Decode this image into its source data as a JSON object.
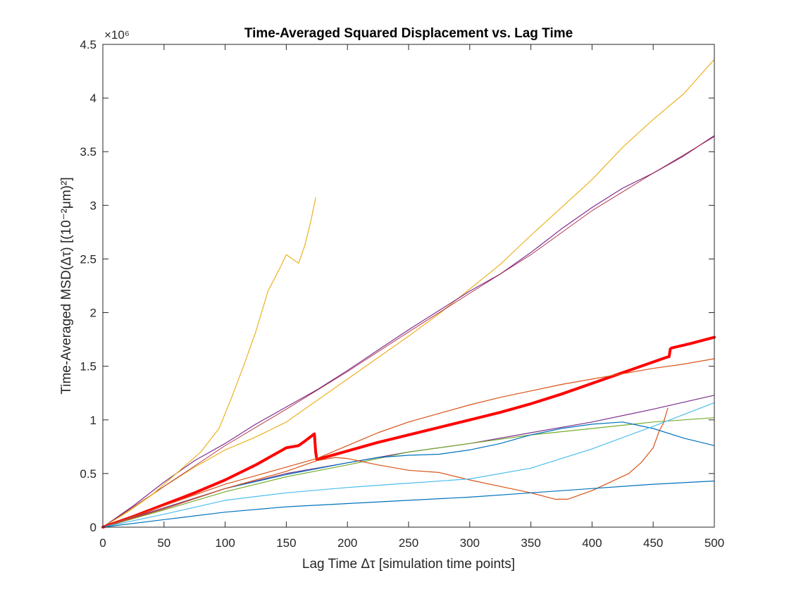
{
  "chart_data": {
    "type": "line",
    "title": "Time-Averaged Squared Displacement vs. Lag Time",
    "xlabel": "Lag Time Δτ [simulation time points]",
    "ylabel": "Time-Averaged MSD(Δτ) [(10⁻²μm)²]",
    "y_multiplier": "×10⁶",
    "xlim": [
      0,
      500
    ],
    "ylim": [
      0,
      4.5
    ],
    "y_scale_factor": 1000000,
    "grid": false,
    "legend": "none",
    "x_ticks": [
      "0",
      "50",
      "100",
      "150",
      "200",
      "250",
      "300",
      "350",
      "400",
      "450",
      "500"
    ],
    "y_ticks": [
      "0",
      "0.5",
      "1",
      "1.5",
      "2",
      "2.5",
      "3",
      "3.5",
      "4",
      "4.5"
    ],
    "series": [
      {
        "color": "#EDB120",
        "width": 1.2,
        "x": [
          0,
          25,
          50,
          75,
          100,
          125,
          150,
          175,
          200,
          225,
          250,
          275,
          300,
          325,
          350,
          375,
          400,
          425,
          450,
          475,
          500
        ],
        "y": [
          0,
          0.18,
          0.38,
          0.56,
          0.72,
          0.84,
          0.98,
          1.18,
          1.38,
          1.58,
          1.78,
          1.99,
          2.22,
          2.45,
          2.72,
          2.98,
          3.24,
          3.54,
          3.8,
          4.04,
          4.36
        ]
      },
      {
        "color": "#7E2F8E",
        "width": 1.2,
        "x": [
          0,
          25,
          50,
          75,
          100,
          125,
          150,
          175,
          200,
          225,
          250,
          275,
          300,
          325,
          350,
          375,
          400,
          425,
          450,
          475,
          500
        ],
        "y": [
          0,
          0.2,
          0.42,
          0.62,
          0.78,
          0.96,
          1.12,
          1.28,
          1.46,
          1.65,
          1.84,
          2.02,
          2.2,
          2.36,
          2.56,
          2.78,
          2.98,
          3.16,
          3.3,
          3.46,
          3.65
        ]
      },
      {
        "color": "#A2142F",
        "width": 0.8,
        "x": [
          0,
          50,
          100,
          150,
          200,
          250,
          300,
          350,
          400,
          450,
          500
        ],
        "y": [
          0,
          0.38,
          0.76,
          1.1,
          1.45,
          1.82,
          2.18,
          2.54,
          2.95,
          3.3,
          3.64
        ]
      },
      {
        "color": "#EDB120",
        "width": 1.2,
        "x": [
          0,
          20,
          40,
          60,
          80,
          95,
          105,
          115,
          125,
          135,
          145,
          150,
          155,
          160,
          165,
          170,
          174
        ],
        "y": [
          0,
          0.14,
          0.3,
          0.5,
          0.7,
          0.92,
          1.2,
          1.5,
          1.82,
          2.2,
          2.42,
          2.54,
          2.5,
          2.46,
          2.62,
          2.85,
          3.07
        ]
      },
      {
        "color": "#FF0000",
        "width": 4,
        "x": [
          0,
          25,
          50,
          75,
          100,
          125,
          150,
          160,
          165,
          173,
          174,
          175,
          200,
          225,
          250,
          275,
          300,
          325,
          350,
          375,
          400,
          425,
          450,
          460,
          463,
          464,
          465,
          480,
          500
        ],
        "y": [
          0,
          0.1,
          0.21,
          0.32,
          0.44,
          0.58,
          0.74,
          0.76,
          0.8,
          0.87,
          0.7,
          0.63,
          0.71,
          0.79,
          0.86,
          0.93,
          1.0,
          1.07,
          1.15,
          1.24,
          1.34,
          1.44,
          1.54,
          1.58,
          1.59,
          1.66,
          1.67,
          1.71,
          1.77
        ]
      },
      {
        "color": "#D95319",
        "width": 1.2,
        "x": [
          0,
          25,
          50,
          75,
          100,
          125,
          150,
          175,
          200,
          225,
          250,
          275,
          300,
          325,
          350,
          375,
          400,
          425,
          450,
          475,
          500
        ],
        "y": [
          0,
          0.1,
          0.2,
          0.3,
          0.4,
          0.48,
          0.56,
          0.64,
          0.76,
          0.88,
          0.98,
          1.06,
          1.14,
          1.21,
          1.27,
          1.33,
          1.38,
          1.43,
          1.48,
          1.52,
          1.57
        ]
      },
      {
        "color": "#7E2F8E",
        "width": 1.2,
        "x": [
          0,
          50,
          100,
          150,
          200,
          250,
          300,
          350,
          400,
          450,
          500
        ],
        "y": [
          0,
          0.18,
          0.36,
          0.5,
          0.6,
          0.7,
          0.78,
          0.88,
          0.98,
          1.1,
          1.23
        ]
      },
      {
        "color": "#77AC30",
        "width": 1.2,
        "x": [
          0,
          50,
          100,
          150,
          200,
          250,
          300,
          350,
          400,
          450,
          500
        ],
        "y": [
          0,
          0.16,
          0.33,
          0.47,
          0.58,
          0.7,
          0.78,
          0.86,
          0.92,
          0.98,
          1.02
        ]
      },
      {
        "color": "#0072BD",
        "width": 1.2,
        "x": [
          0,
          50,
          100,
          150,
          200,
          225,
          250,
          275,
          300,
          325,
          350,
          375,
          400,
          425,
          450,
          475,
          500
        ],
        "y": [
          0,
          0.17,
          0.36,
          0.49,
          0.6,
          0.65,
          0.67,
          0.68,
          0.72,
          0.78,
          0.86,
          0.92,
          0.96,
          0.98,
          0.92,
          0.83,
          0.76
        ]
      },
      {
        "color": "#D95319",
        "width": 1.2,
        "x": [
          0,
          50,
          100,
          150,
          175,
          190,
          200,
          225,
          250,
          275,
          300,
          325,
          350,
          370,
          380,
          400,
          415,
          430,
          440,
          450,
          455,
          458,
          462
        ],
        "y": [
          0,
          0.17,
          0.36,
          0.52,
          0.62,
          0.65,
          0.64,
          0.58,
          0.53,
          0.51,
          0.44,
          0.38,
          0.32,
          0.26,
          0.26,
          0.34,
          0.42,
          0.5,
          0.6,
          0.74,
          0.9,
          0.96,
          1.11
        ]
      },
      {
        "color": "#4DBEEE",
        "width": 1.2,
        "x": [
          0,
          50,
          100,
          150,
          200,
          250,
          300,
          350,
          400,
          450,
          500
        ],
        "y": [
          0,
          0.12,
          0.25,
          0.32,
          0.37,
          0.41,
          0.45,
          0.55,
          0.73,
          0.94,
          1.16
        ]
      },
      {
        "color": "#0072BD",
        "width": 1.2,
        "x": [
          0,
          50,
          100,
          150,
          200,
          250,
          300,
          350,
          400,
          450,
          500
        ],
        "y": [
          0,
          0.07,
          0.14,
          0.19,
          0.22,
          0.25,
          0.28,
          0.32,
          0.36,
          0.4,
          0.43
        ]
      }
    ]
  }
}
